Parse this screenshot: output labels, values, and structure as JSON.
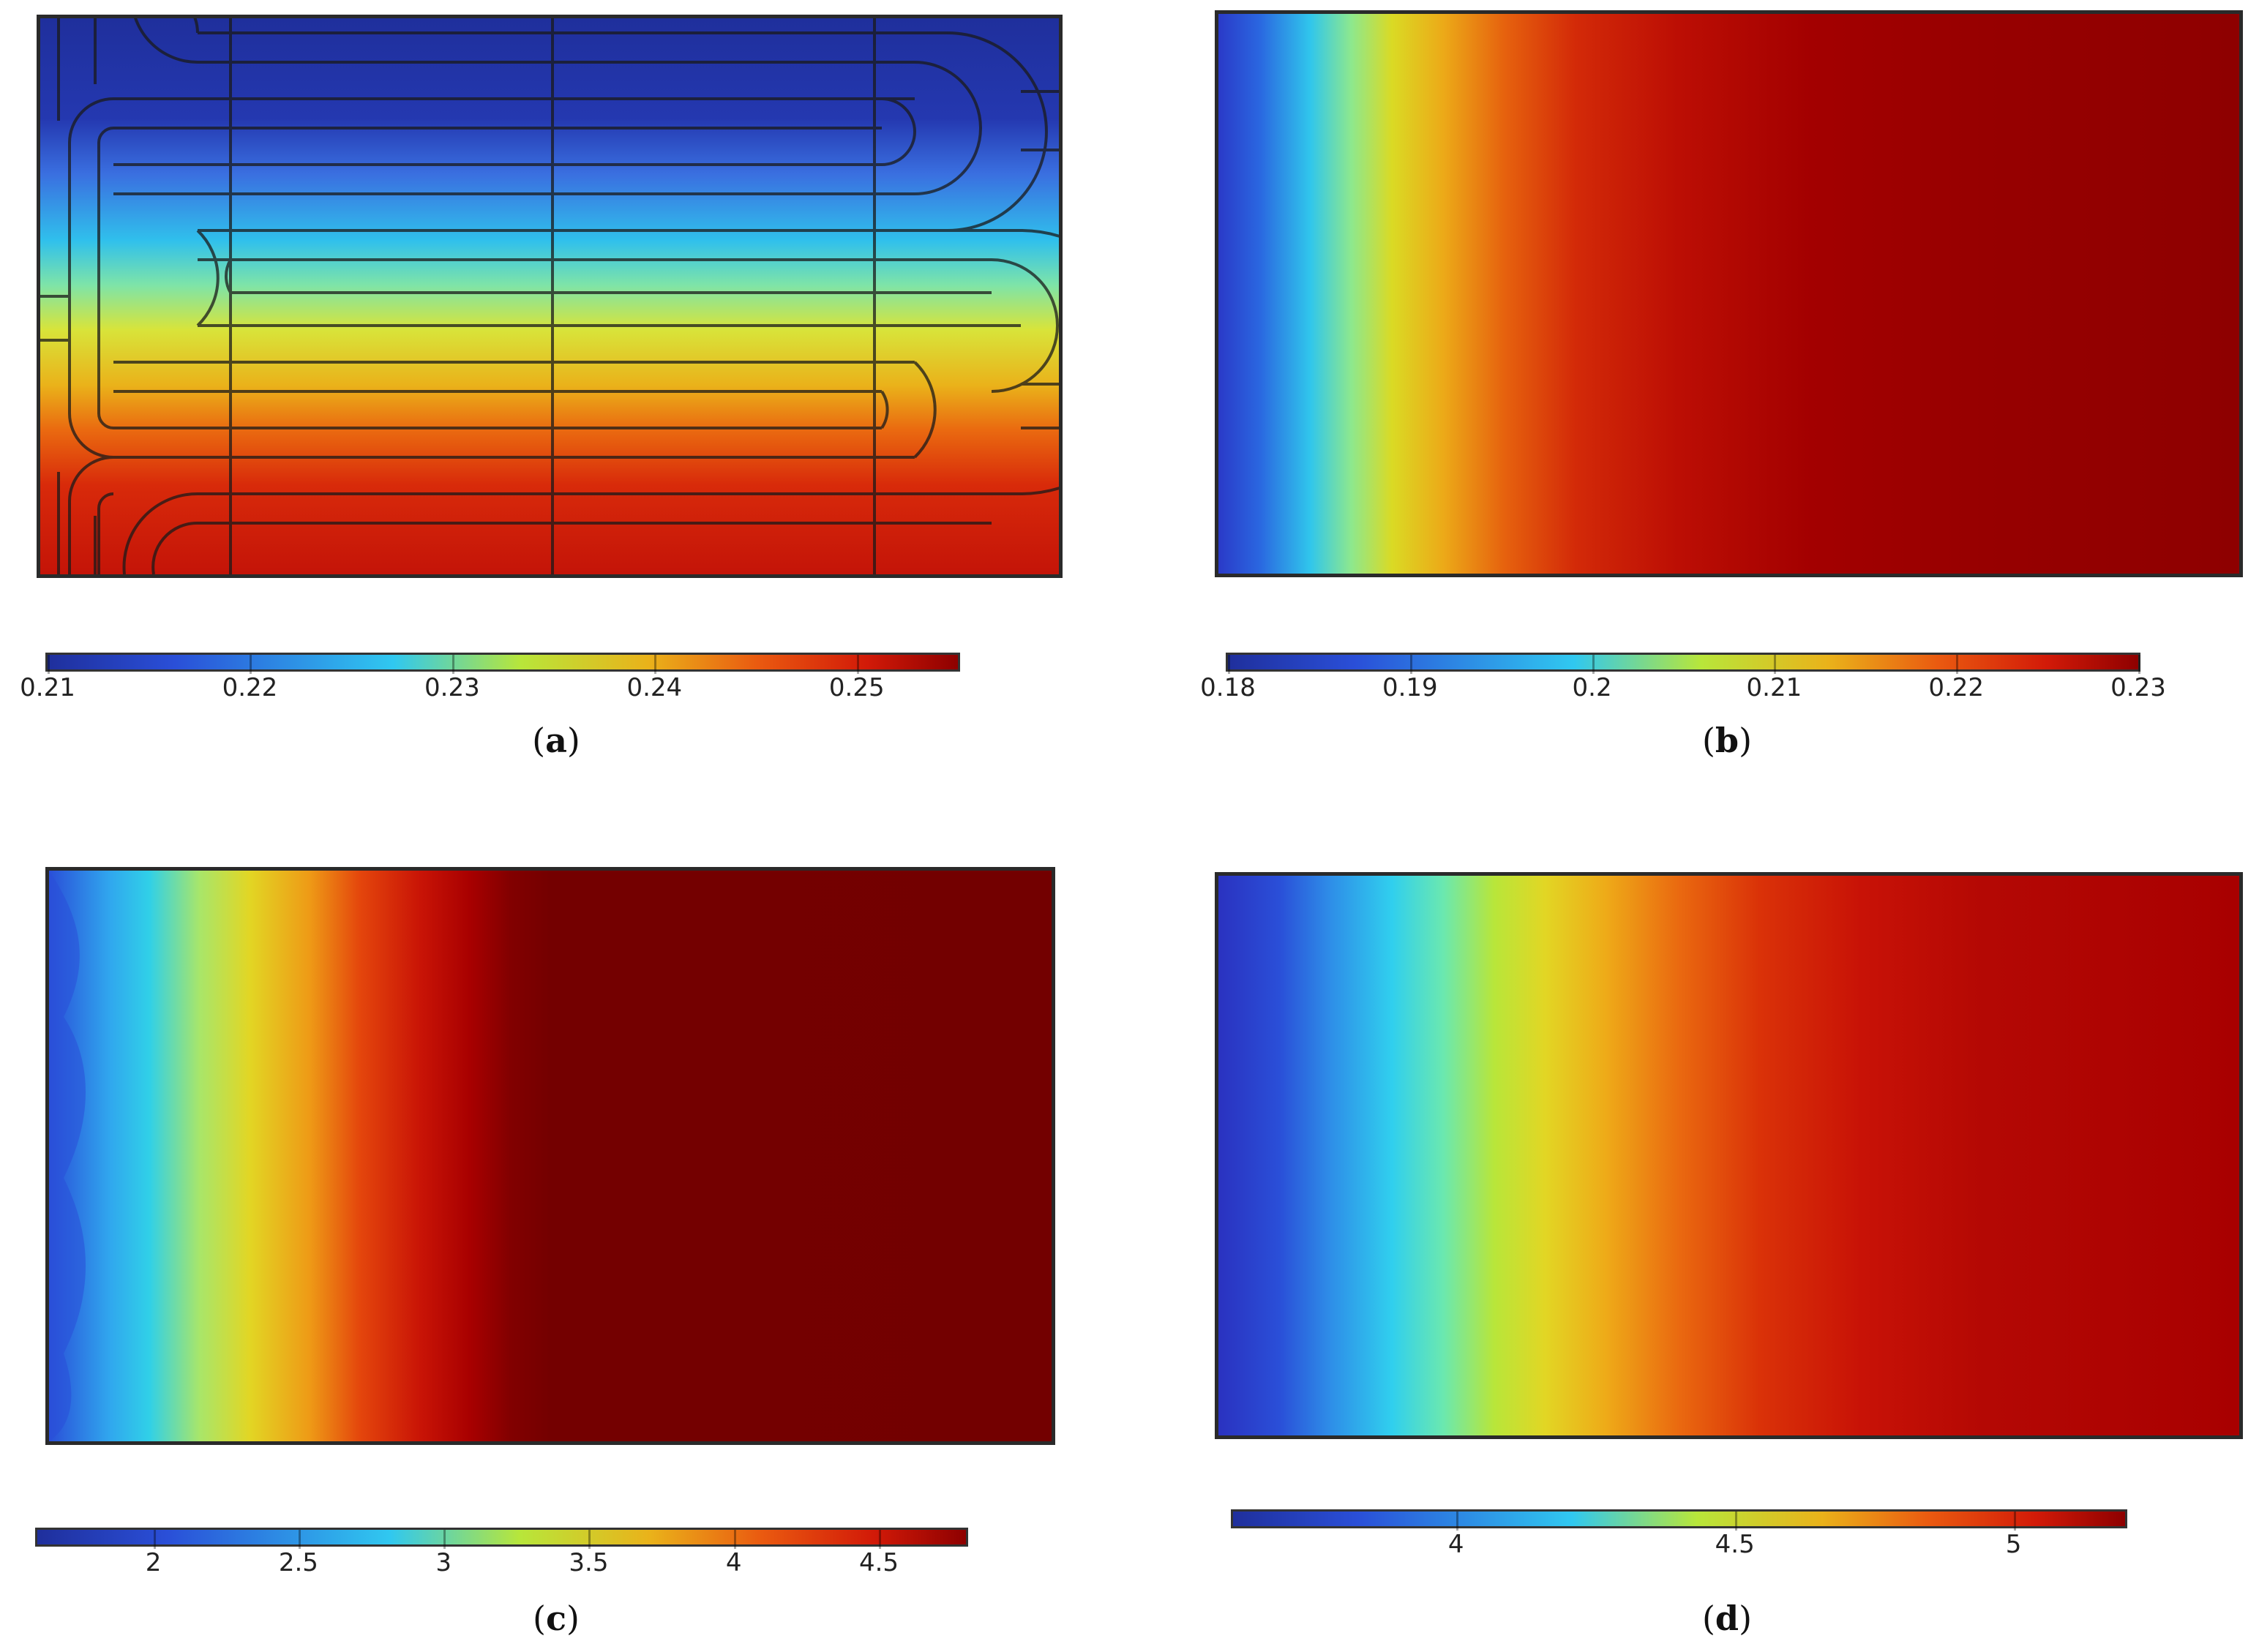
{
  "colormap": [
    "#1f1f8f",
    "#2a4fd8",
    "#30c8f0",
    "#b8e63a",
    "#e9d520",
    "#f07d10",
    "#d61c08",
    "#8e0000",
    "#730000"
  ],
  "panels": [
    {
      "id": "a",
      "caption_label": "a",
      "pattern": "serpentine-channel-overlay",
      "colorbar": {
        "min": 0.21,
        "max": 0.255,
        "ticks": [
          "0.21",
          "0.22",
          "0.23",
          "0.24",
          "0.25"
        ],
        "tick_values": [
          0.21,
          0.22,
          0.23,
          0.24,
          0.25
        ]
      }
    },
    {
      "id": "b",
      "caption_label": "b",
      "pattern": "horizontal-gradient",
      "colorbar": {
        "min": 0.18,
        "max": 0.23,
        "ticks": [
          "0.18",
          "0.19",
          "0.2",
          "0.21",
          "0.22",
          "0.23"
        ],
        "tick_values": [
          0.18,
          0.19,
          0.2,
          0.21,
          0.22,
          0.23
        ]
      }
    },
    {
      "id": "c",
      "caption_label": "c",
      "pattern": "horizontal-gradient-wavy",
      "colorbar": {
        "min": 1.6,
        "max": 4.8,
        "ticks": [
          "2",
          "2.5",
          "3",
          "3.5",
          "4",
          "4.5"
        ],
        "tick_values": [
          2,
          2.5,
          3,
          3.5,
          4,
          4.5
        ]
      }
    },
    {
      "id": "d",
      "caption_label": "d",
      "pattern": "horizontal-gradient",
      "colorbar": {
        "min": 3.6,
        "max": 5.2,
        "ticks": [
          "4",
          "4.5",
          "5"
        ],
        "tick_values": [
          4,
          4.5,
          5
        ]
      }
    }
  ]
}
